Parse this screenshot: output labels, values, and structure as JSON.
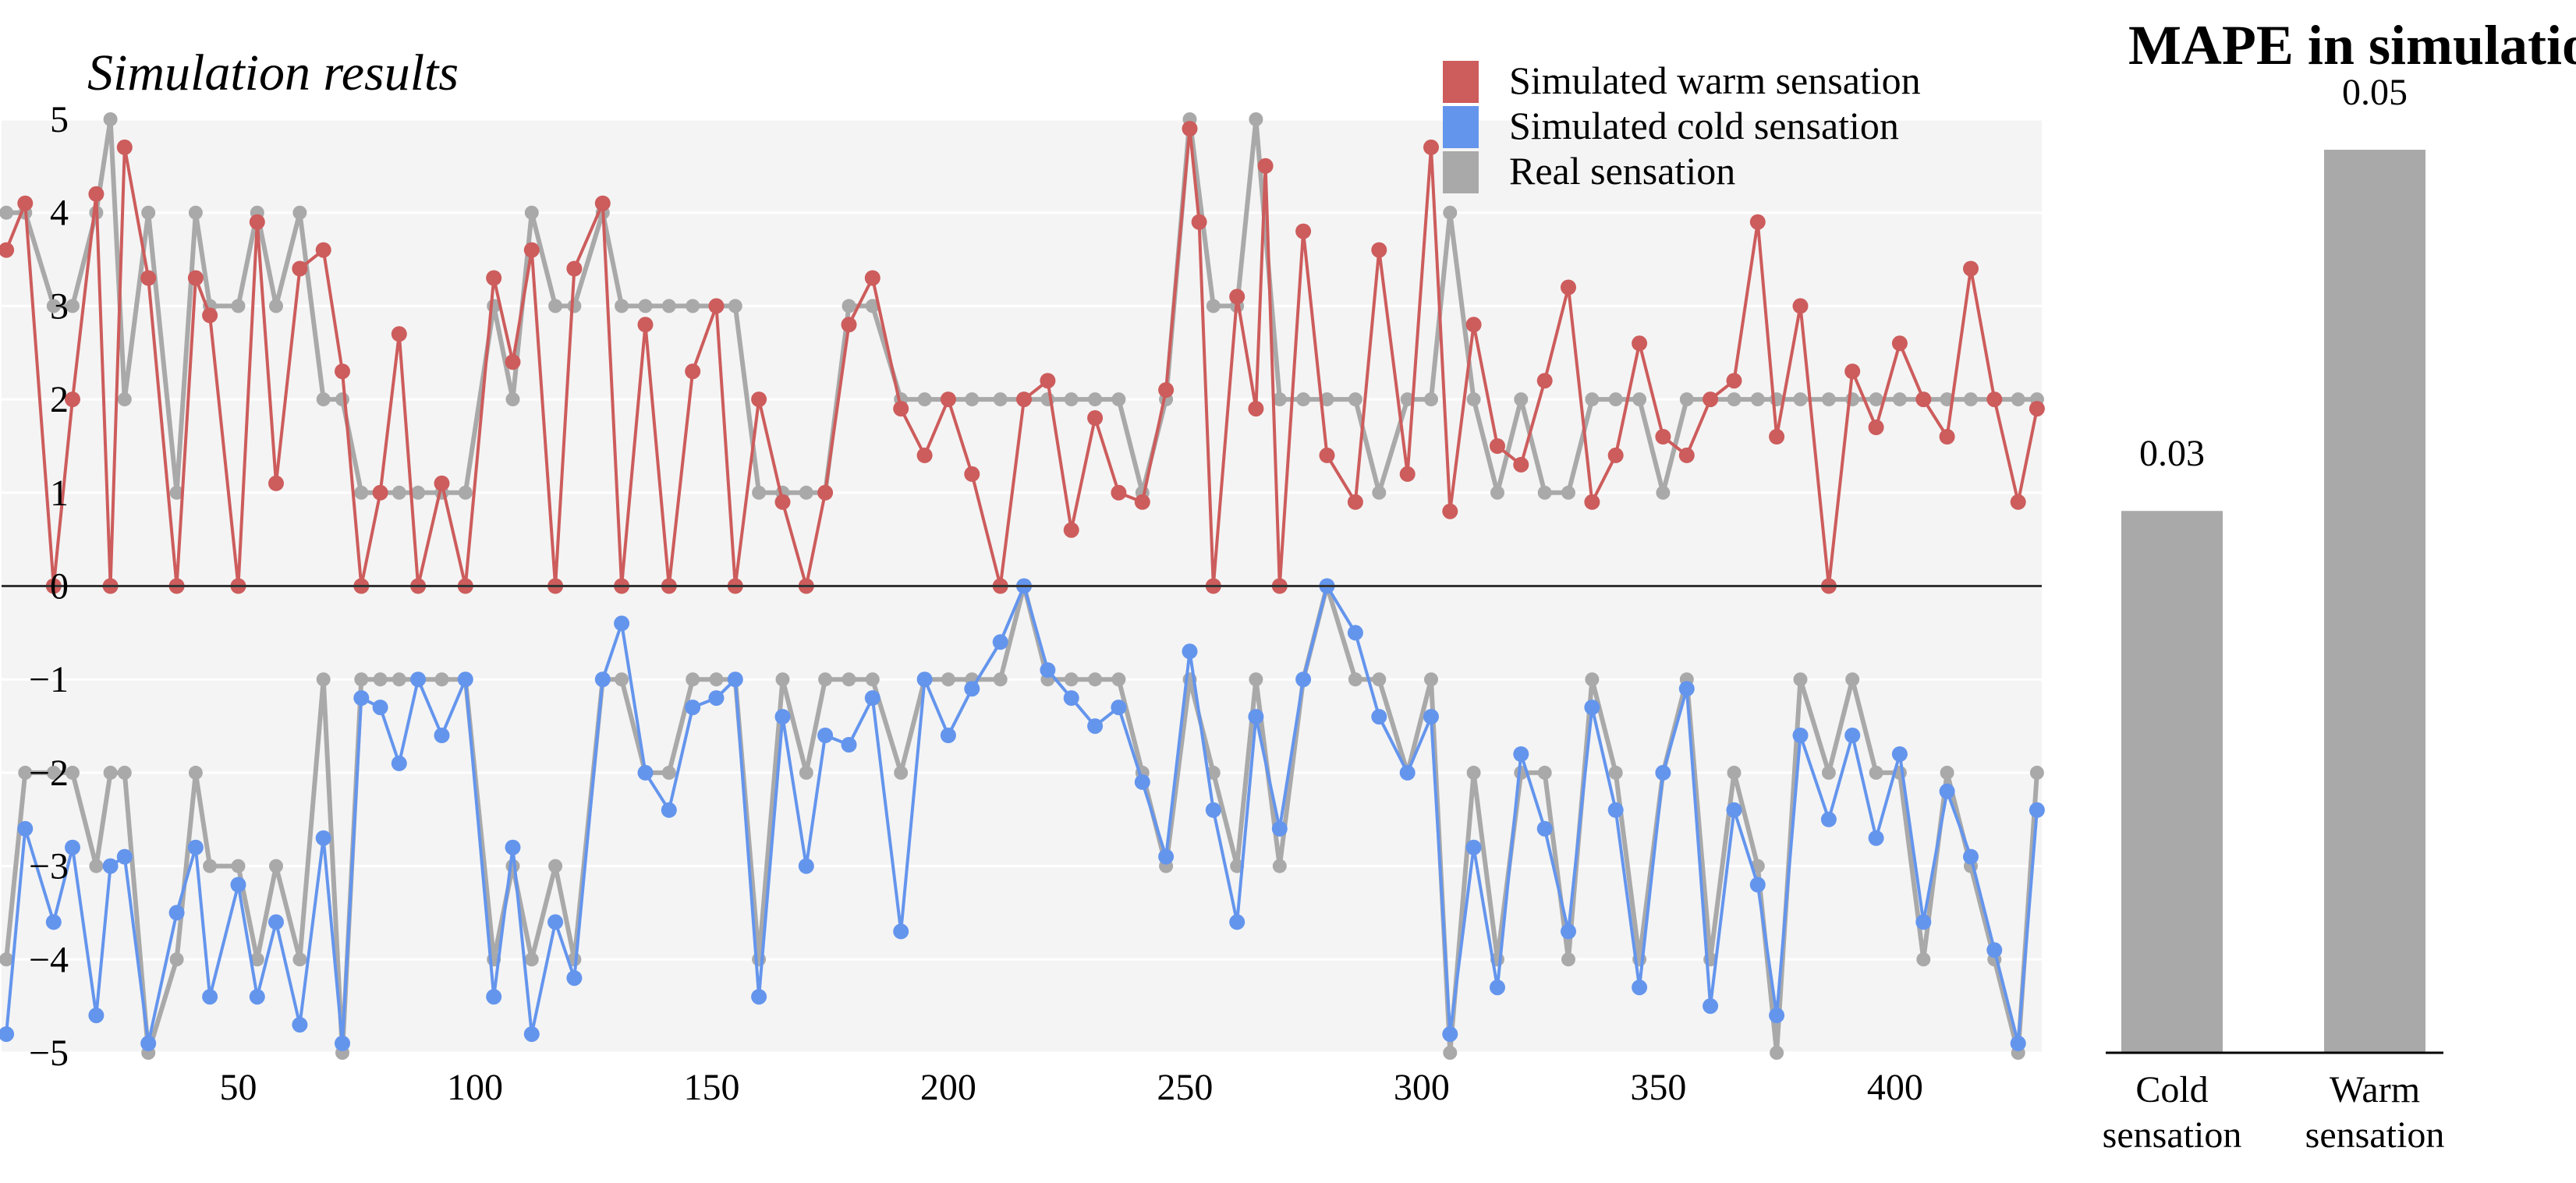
{
  "chart_data": [
    {
      "type": "line",
      "title": "Simulation results",
      "xlabel": "",
      "ylabel": "",
      "xlim": [
        0,
        431
      ],
      "ylim": [
        -5,
        5
      ],
      "x_ticks": [
        50,
        100,
        150,
        200,
        250,
        300,
        350,
        400
      ],
      "y_ticks": [
        5,
        4,
        3,
        2,
        1,
        0,
        -1,
        -2,
        -3,
        -4,
        -5
      ],
      "grid": true,
      "legend_position": "top-right",
      "legend": [
        "Simulated warm sensation",
        "Simulated cold sensation",
        "Real sensation"
      ],
      "colors": {
        "warm": "#cd5c5c",
        "cold": "#6495ed",
        "real": "#a9a9a9",
        "background": "#f4f4f4"
      },
      "series": [
        {
          "name": "Simulated warm sensation",
          "color": "#cd5c5c",
          "x": [
            1,
            5,
            11,
            15,
            20,
            23,
            26,
            31,
            37,
            41,
            44,
            50,
            54,
            58,
            63,
            68,
            72,
            76,
            80,
            84,
            88,
            93,
            98,
            104,
            108,
            112,
            117,
            121,
            127,
            131,
            136,
            141,
            146,
            151,
            155,
            160,
            165,
            170,
            174,
            179,
            184,
            190,
            195,
            200,
            205,
            211,
            216,
            221,
            226,
            231,
            236,
            241,
            246,
            251,
            253,
            256,
            261,
            265,
            267,
            270,
            275,
            280,
            286,
            291,
            297,
            302,
            306,
            311,
            316,
            321,
            326,
            331,
            336,
            341,
            346,
            351,
            356,
            361,
            366,
            371,
            375,
            380,
            386,
            391,
            396,
            401,
            406,
            411,
            416,
            421,
            426,
            430
          ],
          "y": [
            3.6,
            4.1,
            0,
            2.0,
            4.2,
            0,
            4.7,
            3.3,
            0,
            3.3,
            2.9,
            0,
            3.9,
            1.1,
            3.4,
            3.6,
            2.3,
            0,
            1.0,
            2.7,
            0,
            1.1,
            0,
            3.3,
            2.4,
            3.6,
            0,
            3.4,
            4.1,
            0,
            2.8,
            0,
            2.3,
            3.0,
            0,
            2.0,
            0.9,
            0,
            1.0,
            2.8,
            3.3,
            1.9,
            1.4,
            2.0,
            1.2,
            0,
            2.0,
            2.2,
            0.6,
            1.8,
            1.0,
            0.9,
            2.1,
            4.9,
            3.9,
            0,
            3.1,
            1.9,
            4.5,
            0,
            3.8,
            1.4,
            0.9,
            3.6,
            1.2,
            4.7,
            0.8,
            2.8,
            1.5,
            1.3,
            2.2,
            3.2,
            0.9,
            1.4,
            2.6,
            1.6,
            1.4,
            2.0,
            2.2,
            3.9,
            1.6,
            3.0,
            0,
            2.3,
            1.7,
            2.6,
            2.0,
            1.6,
            3.4,
            2.0,
            0.9,
            1.9
          ]
        },
        {
          "name": "Simulated cold sensation",
          "color": "#6495ed",
          "x": [
            1,
            5,
            11,
            15,
            20,
            23,
            26,
            31,
            37,
            41,
            44,
            50,
            54,
            58,
            63,
            68,
            72,
            76,
            80,
            84,
            88,
            93,
            98,
            104,
            108,
            112,
            117,
            121,
            127,
            131,
            136,
            141,
            146,
            151,
            155,
            160,
            165,
            170,
            174,
            179,
            184,
            190,
            195,
            200,
            205,
            211,
            216,
            221,
            226,
            231,
            236,
            241,
            246,
            251,
            256,
            261,
            265,
            270,
            275,
            280,
            286,
            291,
            297,
            302,
            306,
            311,
            316,
            321,
            326,
            331,
            336,
            341,
            346,
            351,
            356,
            361,
            366,
            371,
            375,
            380,
            386,
            391,
            396,
            401,
            406,
            411,
            416,
            421,
            426,
            430
          ],
          "y": [
            -4.8,
            -2.6,
            -3.6,
            -2.8,
            -4.6,
            -3.0,
            -2.9,
            -4.9,
            -3.5,
            -2.8,
            -4.4,
            -3.2,
            -4.4,
            -3.6,
            -4.7,
            -2.7,
            -4.9,
            -1.2,
            -1.3,
            -1.9,
            -1.0,
            -1.6,
            -1.0,
            -4.4,
            -2.8,
            -4.8,
            -3.6,
            -4.2,
            -1.0,
            -0.4,
            -2.0,
            -2.4,
            -1.3,
            -1.2,
            -1.0,
            -4.4,
            -1.4,
            -3.0,
            -1.6,
            -1.7,
            -1.2,
            -3.7,
            -1.0,
            -1.6,
            -1.1,
            -0.6,
            0,
            -0.9,
            -1.2,
            -1.5,
            -1.3,
            -2.1,
            -2.9,
            -0.7,
            -2.4,
            -3.6,
            -1.4,
            -2.6,
            -1.0,
            0,
            -0.5,
            -1.4,
            -2.0,
            -1.4,
            -4.8,
            -2.8,
            -4.3,
            -1.8,
            -2.6,
            -3.7,
            -1.3,
            -2.4,
            -4.3,
            -2.0,
            -1.1,
            -4.5,
            -2.4,
            -3.2,
            -4.6,
            -1.6,
            -2.5,
            -1.6,
            -2.7,
            -1.8,
            -3.6,
            -2.2,
            -2.9,
            -3.9,
            -4.9,
            -2.4
          ]
        },
        {
          "name": "Real sensation",
          "color": "#a9a9a9",
          "x": [
            1,
            5,
            11,
            15,
            20,
            23,
            26,
            31,
            37,
            41,
            44,
            50,
            54,
            58,
            63,
            68,
            72,
            76,
            80,
            84,
            88,
            93,
            98,
            104,
            108,
            112,
            117,
            121,
            127,
            131,
            136,
            141,
            146,
            151,
            155,
            160,
            165,
            170,
            174,
            179,
            184,
            190,
            195,
            200,
            205,
            211,
            216,
            221,
            226,
            231,
            236,
            241,
            246,
            251,
            256,
            261,
            265,
            270,
            275,
            280,
            286,
            291,
            297,
            302,
            306,
            311,
            316,
            321,
            326,
            331,
            336,
            341,
            346,
            351,
            356,
            361,
            366,
            371,
            375,
            380,
            386,
            391,
            396,
            401,
            406,
            411,
            416,
            421,
            426,
            430
          ],
          "y": [
            4,
            4,
            3,
            3,
            4,
            5,
            2,
            4,
            1,
            4,
            3,
            3,
            4,
            3,
            4,
            2,
            2,
            1,
            1,
            1,
            1,
            1,
            1,
            3,
            2,
            4,
            3,
            3,
            4,
            3,
            3,
            3,
            3,
            3,
            3,
            1,
            1,
            1,
            1,
            3,
            3,
            2,
            2,
            2,
            2,
            2,
            2,
            2,
            2,
            2,
            2,
            1,
            2,
            5,
            3,
            3,
            5,
            2,
            2,
            2,
            2,
            1,
            2,
            2,
            4,
            2,
            1,
            2,
            1,
            1,
            2,
            2,
            2,
            1,
            2,
            2,
            2,
            2,
            2,
            2,
            2,
            2,
            2,
            2,
            2,
            2,
            2,
            2,
            2,
            2
          ]
        },
        {
          "name": "Real sensation (cold)",
          "color": "#a9a9a9",
          "x": [
            1,
            5,
            11,
            15,
            20,
            23,
            26,
            31,
            37,
            41,
            44,
            50,
            54,
            58,
            63,
            68,
            72,
            76,
            80,
            84,
            88,
            93,
            98,
            104,
            108,
            112,
            117,
            121,
            127,
            131,
            136,
            141,
            146,
            151,
            155,
            160,
            165,
            170,
            174,
            179,
            184,
            190,
            195,
            200,
            205,
            211,
            216,
            221,
            226,
            231,
            236,
            241,
            246,
            251,
            256,
            261,
            265,
            270,
            275,
            280,
            286,
            291,
            297,
            302,
            306,
            311,
            316,
            321,
            326,
            331,
            336,
            341,
            346,
            351,
            356,
            361,
            366,
            371,
            375,
            380,
            386,
            391,
            396,
            401,
            406,
            411,
            416,
            421,
            426,
            430
          ],
          "y": [
            -4,
            -2,
            -2,
            -2,
            -3,
            -2,
            -2,
            -5,
            -4,
            -2,
            -3,
            -3,
            -4,
            -3,
            -4,
            -1,
            -5,
            -1,
            -1,
            -1,
            -1,
            -1,
            -1,
            -4,
            -3,
            -4,
            -3,
            -4,
            -1,
            -1,
            -2,
            -2,
            -1,
            -1,
            -1,
            -4,
            -1,
            -2,
            -1,
            -1,
            -1,
            -2,
            -1,
            -1,
            -1,
            -1,
            0,
            -1,
            -1,
            -1,
            -1,
            -2,
            -3,
            -1,
            -2,
            -3,
            -1,
            -3,
            -1,
            0,
            -1,
            -1,
            -2,
            -1,
            -5,
            -2,
            -4,
            -2,
            -2,
            -4,
            -1,
            -2,
            -4,
            -2,
            -1,
            -4,
            -2,
            -3,
            -5,
            -1,
            -2,
            -1,
            -2,
            -2,
            -4,
            -2,
            -3,
            -4,
            -5,
            -2
          ]
        }
      ]
    },
    {
      "type": "bar",
      "title": "MAPE in simulation",
      "categories": [
        "Cold\nsensation",
        "Warm\nsensation"
      ],
      "values": [
        0.03,
        0.05
      ],
      "value_labels": [
        "0.03",
        "0.05"
      ],
      "ylim": [
        0,
        0.0557
      ],
      "bar_color": "#a9a9a9"
    }
  ]
}
